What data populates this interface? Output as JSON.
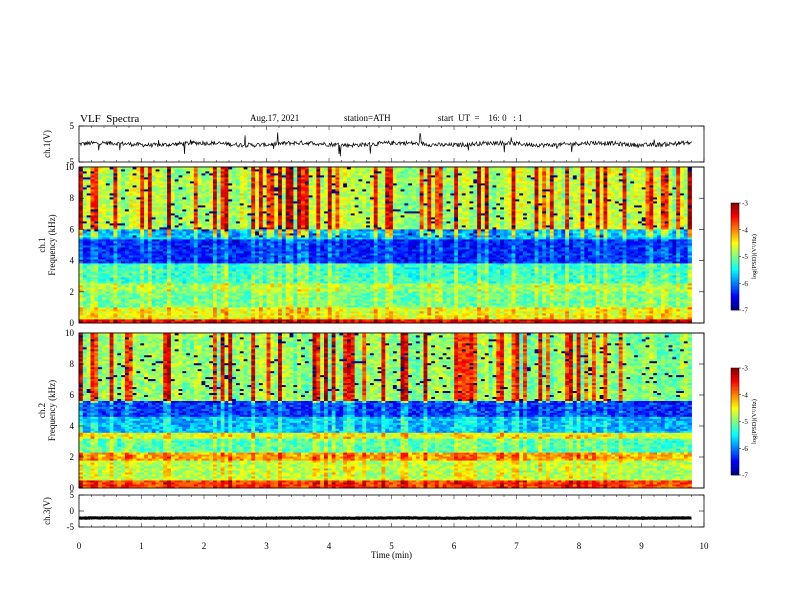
{
  "header": {
    "title": "VLF  Spectra",
    "date": "Aug.17, 2021",
    "station": "station=ATH",
    "start": "start  UT  =    16: 0   : 1"
  },
  "chart_data": [
    {
      "type": "line",
      "name": "ch1-waveform",
      "ylabel": "ch.1(V)",
      "ylim": [
        -5,
        5
      ],
      "y_ticks": [
        "5",
        "-5"
      ],
      "baseline": 0,
      "amplitude": 1.2
    },
    {
      "type": "heatmap",
      "name": "ch1-spectrogram",
      "ylabel": "ch.1\nFrequency  (kHz)",
      "ylim": [
        0,
        10
      ],
      "y_ticks": [
        "0",
        "2",
        "4",
        "6",
        "8",
        "10"
      ],
      "x_range_min": [
        0,
        9.8
      ],
      "zlabel": "log(PSD)(V²/Hz)",
      "zlim": [
        -7,
        -3
      ],
      "z_ticks": [
        "-3",
        "-4",
        "-5",
        "-6",
        "-7"
      ],
      "bands_khz": [
        {
          "from": 0,
          "to": 0.3,
          "level": -3.5
        },
        {
          "from": 0.3,
          "to": 1.0,
          "level": -4.6
        },
        {
          "from": 1.0,
          "to": 2.0,
          "level": -5.1
        },
        {
          "from": 2.0,
          "to": 2.6,
          "level": -4.9
        },
        {
          "from": 2.6,
          "to": 3.8,
          "level": -5.3
        },
        {
          "from": 3.8,
          "to": 5.4,
          "level": -6.4
        },
        {
          "from": 5.4,
          "to": 6.0,
          "level": -5.8
        },
        {
          "from": 6.0,
          "to": 10.0,
          "level": -4.8
        }
      ]
    },
    {
      "type": "heatmap",
      "name": "ch2-spectrogram",
      "ylabel": "ch.2\nFrequency  (kHz)",
      "ylim": [
        0,
        10
      ],
      "y_ticks": [
        "0",
        "2",
        "4",
        "6",
        "8",
        "10"
      ],
      "x_range_min": [
        0,
        9.8
      ],
      "zlabel": "log(PSD)(V²/Hz)",
      "zlim": [
        -7,
        -3
      ],
      "z_ticks": [
        "-3",
        "-4",
        "-5",
        "-6",
        "-7"
      ],
      "bands_khz": [
        {
          "from": 0,
          "to": 0.5,
          "level": -3.8
        },
        {
          "from": 0.5,
          "to": 1.8,
          "level": -4.8
        },
        {
          "from": 1.8,
          "to": 2.3,
          "level": -4.2
        },
        {
          "from": 2.3,
          "to": 3.2,
          "level": -5.2
        },
        {
          "from": 3.2,
          "to": 3.6,
          "level": -4.6
        },
        {
          "from": 3.6,
          "to": 4.6,
          "level": -5.8
        },
        {
          "from": 4.6,
          "to": 5.6,
          "level": -6.3
        },
        {
          "from": 5.6,
          "to": 10.0,
          "level": -4.9
        }
      ]
    },
    {
      "type": "line",
      "name": "ch3-waveform",
      "ylabel": "ch.3(V)",
      "ylim": [
        -5,
        5
      ],
      "y_ticks": [
        "5",
        "0",
        "-5"
      ],
      "baseline": -2.2,
      "amplitude": 0.15
    }
  ],
  "x_axis": {
    "label": "Time  (min)",
    "range": [
      0,
      10
    ],
    "ticks": [
      "0",
      "1",
      "2",
      "3",
      "4",
      "5",
      "6",
      "7",
      "8",
      "9",
      "10"
    ]
  }
}
